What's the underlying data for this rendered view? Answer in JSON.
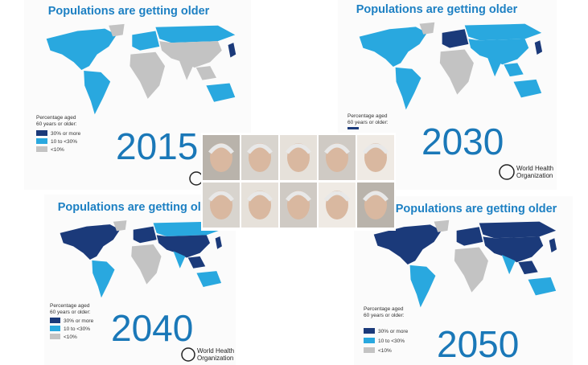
{
  "panels": [
    {
      "title": "Populations are getting older",
      "year": "2015",
      "legend": {
        "title": [
          "Percentage aged",
          "60 years or older:"
        ],
        "items": [
          "30% or more",
          "10 to <30%",
          "<10%"
        ]
      }
    },
    {
      "title": "Populations are getting older",
      "year": "2030",
      "legend": {
        "title": [
          "Percentage aged",
          "60 years or older:"
        ]
      },
      "logo": [
        "World Health",
        "Organization"
      ]
    },
    {
      "title": "Populations are getting older",
      "year": "2040",
      "legend": {
        "title": [
          "Percentage aged",
          "60 years or older:"
        ],
        "items": [
          "30% or more",
          "10 to <30%",
          "<10%"
        ]
      },
      "logo": [
        "World Health",
        "Organization"
      ]
    },
    {
      "title": "Populations are getting older",
      "year": "2050",
      "legend": {
        "title": [
          "Percentage aged",
          "60 years or older:"
        ],
        "items": [
          "30% or more",
          "10 to <30%",
          "<10%"
        ]
      }
    }
  ]
}
